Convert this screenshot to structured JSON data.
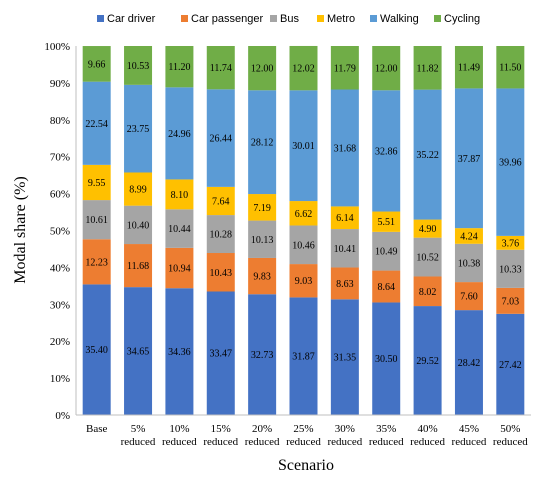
{
  "chart_data": {
    "type": "bar",
    "stacked": true,
    "percent_stacked": true,
    "xlabel": "Scenario",
    "ylabel": "Modal share (%)",
    "ylim": [
      0,
      100
    ],
    "yticks": [
      "0%",
      "10%",
      "20%",
      "30%",
      "40%",
      "50%",
      "60%",
      "70%",
      "80%",
      "90%",
      "100%"
    ],
    "grid": false,
    "legend_position": "top",
    "categories": [
      [
        "Base"
      ],
      [
        "5%",
        "reduced"
      ],
      [
        "10%",
        "reduced"
      ],
      [
        "15%",
        "reduced"
      ],
      [
        "20%",
        "reduced"
      ],
      [
        "25%",
        "reduced"
      ],
      [
        "30%",
        "reduced"
      ],
      [
        "35%",
        "reduced"
      ],
      [
        "40%",
        "reduced"
      ],
      [
        "45%",
        "reduced"
      ],
      [
        "50%",
        "reduced"
      ]
    ],
    "series": [
      {
        "name": "Car driver",
        "color": "#4472C4",
        "values": [
          35.4,
          34.65,
          34.36,
          33.47,
          32.73,
          31.87,
          31.35,
          30.5,
          29.52,
          28.42,
          27.42
        ]
      },
      {
        "name": "Car passenger",
        "color": "#ED7D31",
        "values": [
          12.23,
          11.68,
          10.94,
          10.43,
          9.83,
          9.03,
          8.63,
          8.64,
          8.02,
          7.6,
          7.03
        ]
      },
      {
        "name": "Bus",
        "color": "#A5A5A5",
        "values": [
          10.61,
          10.4,
          10.44,
          10.28,
          10.13,
          10.46,
          10.41,
          10.49,
          10.52,
          10.38,
          10.33
        ]
      },
      {
        "name": "Metro",
        "color": "#FFC000",
        "values": [
          9.55,
          8.99,
          8.1,
          7.64,
          7.19,
          6.62,
          6.14,
          5.51,
          4.9,
          4.24,
          3.76
        ]
      },
      {
        "name": "Walking",
        "color": "#5B9BD5",
        "values": [
          22.54,
          23.75,
          24.96,
          26.44,
          28.12,
          30.01,
          31.68,
          32.86,
          35.22,
          37.87,
          39.96
        ]
      },
      {
        "name": "Cycling",
        "color": "#70AD47",
        "values": [
          9.66,
          10.53,
          11.2,
          11.74,
          12.0,
          12.02,
          11.79,
          12.0,
          11.82,
          11.49,
          11.5
        ]
      }
    ]
  }
}
